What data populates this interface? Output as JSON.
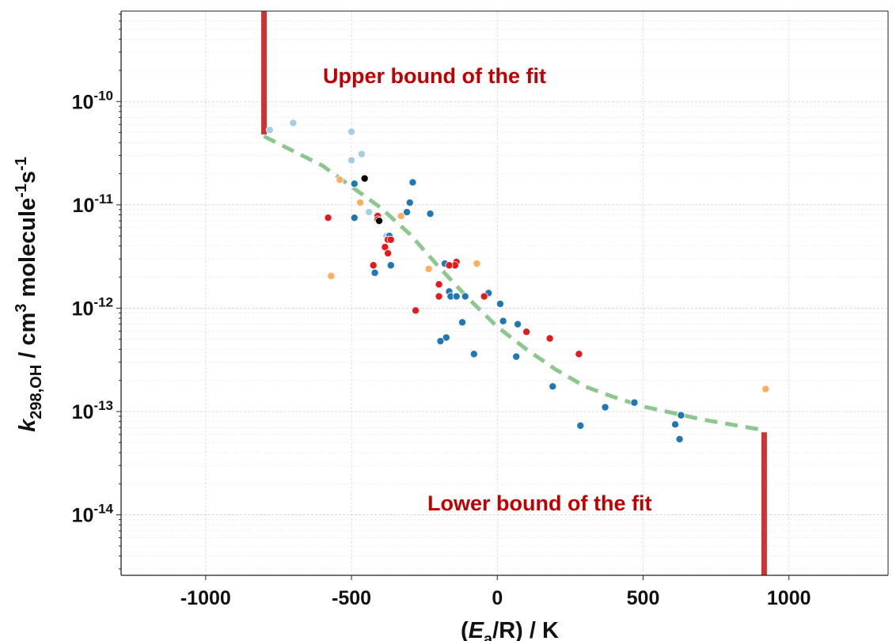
{
  "chart_data": {
    "type": "scatter",
    "x_scale": "linear",
    "y_scale": "log",
    "xlim": [
      -1290,
      1340
    ],
    "ylim": [
      2.6e-15,
      7.5e-10
    ],
    "x_ticks": [
      -1000,
      -500,
      0,
      500,
      1000
    ],
    "x_tick_labels": [
      "-1000",
      "-500",
      "0",
      "500",
      "1000"
    ],
    "y_ticks": [
      1e-14,
      1e-13,
      1e-12,
      1e-11,
      1e-10
    ],
    "y_tick_labels": [
      {
        "base": "10",
        "exp": "-14"
      },
      {
        "base": "10",
        "exp": "-13"
      },
      {
        "base": "10",
        "exp": "-12"
      },
      {
        "base": "10",
        "exp": "-11"
      },
      {
        "base": "10",
        "exp": "-10"
      }
    ],
    "grid": true,
    "xlabel": {
      "pre": "(",
      "italic": "E",
      "sub": "a",
      "post": "/R) / K"
    },
    "ylabel": {
      "italic": "k",
      "sub": "298,OH",
      "mid": " / cm",
      "sup1": "3",
      "mid2": " molecule",
      "sup2": "-1",
      "mid3": "s",
      "sup3": "-1"
    },
    "annotations": [
      {
        "text": "Upper bound of the fit",
        "color": "#c00000"
      },
      {
        "text": "Lower bound of the fit",
        "color": "#c00000"
      }
    ],
    "bounds": {
      "color": "#cc3333",
      "upper": {
        "x": -800,
        "y_from": 4.8e-11
      },
      "lower": {
        "x": 915,
        "y_to": 6.3e-14
      }
    },
    "fit_curve": {
      "color": "#88c488",
      "style": "dashed",
      "x": [
        -800,
        -600,
        -400,
        -300,
        -200,
        -100,
        0,
        100,
        200,
        300,
        400,
        500,
        600,
        700,
        800,
        915
      ],
      "y": [
        4.6e-11,
        2.4e-11,
        9.4e-12,
        5.2e-12,
        2.5e-12,
        1.25e-12,
        6.6e-13,
        4e-13,
        2.55e-13,
        1.75e-13,
        1.38e-13,
        1.12e-13,
        9.7e-14,
        8.4e-14,
        7.5e-14,
        6.6e-14
      ]
    },
    "series": [
      {
        "color": "#a6cee3",
        "points": [
          [
            -780,
            5.3e-11
          ],
          [
            -700,
            6.2e-11
          ],
          [
            -500,
            5.1e-11
          ],
          [
            -500,
            2.7e-11
          ],
          [
            -465,
            3.1e-11
          ],
          [
            -440,
            8.5e-12
          ],
          [
            -380,
            5e-12
          ]
        ]
      },
      {
        "color": "#1f78b4",
        "points": [
          [
            -490,
            1.6e-11
          ],
          [
            -490,
            7.5e-12
          ],
          [
            -290,
            1.65e-11
          ],
          [
            -300,
            1.05e-11
          ],
          [
            -310,
            8.5e-12
          ],
          [
            -230,
            8.2e-12
          ],
          [
            -370,
            5e-12
          ],
          [
            -365,
            2.6e-12
          ],
          [
            -420,
            2.2e-12
          ],
          [
            -180,
            2.7e-12
          ],
          [
            -165,
            1.45e-12
          ],
          [
            -160,
            1.3e-12
          ],
          [
            -140,
            1.3e-12
          ],
          [
            -110,
            1.3e-12
          ],
          [
            -30,
            1.4e-12
          ],
          [
            10,
            1.1e-12
          ],
          [
            20,
            7.5e-13
          ],
          [
            70,
            7e-13
          ],
          [
            -120,
            7.3e-13
          ],
          [
            -175,
            5.2e-13
          ],
          [
            -195,
            4.8e-13
          ],
          [
            -80,
            3.6e-13
          ],
          [
            65,
            3.4e-13
          ],
          [
            190,
            1.75e-13
          ],
          [
            370,
            1.1e-13
          ],
          [
            470,
            1.22e-13
          ],
          [
            610,
            7.5e-14
          ],
          [
            625,
            5.4e-14
          ],
          [
            630,
            9.2e-14
          ],
          [
            285,
            7.3e-14
          ]
        ]
      },
      {
        "color": "#e31a1c",
        "points": [
          [
            -580,
            7.5e-12
          ],
          [
            -410,
            7.8e-12
          ],
          [
            -410,
            7.2e-12
          ],
          [
            -385,
            3.9e-12
          ],
          [
            -375,
            3.4e-12
          ],
          [
            -375,
            4.6e-12
          ],
          [
            -365,
            4.6e-12
          ],
          [
            -425,
            2.6e-12
          ],
          [
            -140,
            2.8e-12
          ],
          [
            -145,
            2.6e-12
          ],
          [
            -165,
            2.6e-12
          ],
          [
            -200,
            1.7e-12
          ],
          [
            -200,
            1.3e-12
          ],
          [
            -280,
            9.5e-13
          ],
          [
            -45,
            1.3e-12
          ],
          [
            100,
            5.9e-13
          ],
          [
            180,
            5.1e-13
          ],
          [
            280,
            3.6e-13
          ]
        ]
      },
      {
        "color": "#fdae61",
        "points": [
          [
            -540,
            1.75e-11
          ],
          [
            -470,
            1.05e-11
          ],
          [
            -330,
            7.8e-12
          ],
          [
            -235,
            2.4e-12
          ],
          [
            -570,
            2.05e-12
          ],
          [
            -70,
            2.7e-12
          ],
          [
            920,
            1.65e-13
          ]
        ]
      },
      {
        "color": "#000000",
        "points": [
          [
            -455,
            1.8e-11
          ],
          [
            -405,
            7e-12
          ]
        ]
      }
    ]
  }
}
